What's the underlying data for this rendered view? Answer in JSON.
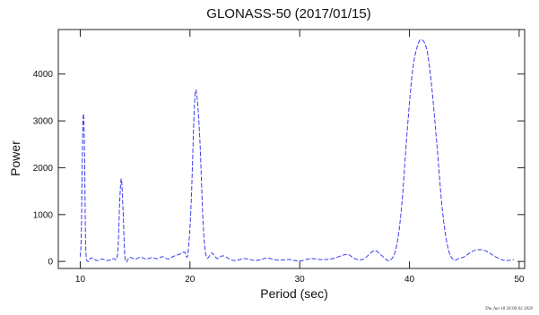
{
  "chart_data": {
    "type": "line",
    "title": "GLONASS-50 (2017/01/15)",
    "xlabel": "Period (sec)",
    "ylabel": "Power",
    "xlim": [
      8,
      50.5
    ],
    "ylim": [
      -150,
      4950
    ],
    "xticks": [
      10,
      20,
      30,
      40,
      50
    ],
    "yticks": [
      0,
      1000,
      2000,
      3000,
      4000
    ],
    "grid": false,
    "line_color": "#3a3af0",
    "line_style": "dashed",
    "series": [
      {
        "values": [
          [
            10.0,
            100
          ],
          [
            10.1,
            600
          ],
          [
            10.2,
            2400
          ],
          [
            10.3,
            3150
          ],
          [
            10.4,
            2200
          ],
          [
            10.5,
            300
          ],
          [
            10.7,
            0
          ],
          [
            11.0,
            80
          ],
          [
            11.5,
            20
          ],
          [
            12.0,
            50
          ],
          [
            12.5,
            20
          ],
          [
            13.0,
            60
          ],
          [
            13.4,
            150
          ],
          [
            13.6,
            1300
          ],
          [
            13.75,
            1760
          ],
          [
            13.9,
            1100
          ],
          [
            14.1,
            50
          ],
          [
            14.5,
            90
          ],
          [
            15.0,
            50
          ],
          [
            15.5,
            90
          ],
          [
            16.0,
            50
          ],
          [
            16.5,
            80
          ],
          [
            17.0,
            60
          ],
          [
            17.5,
            100
          ],
          [
            18.0,
            50
          ],
          [
            18.5,
            110
          ],
          [
            19.0,
            150
          ],
          [
            19.5,
            200
          ],
          [
            19.8,
            150
          ],
          [
            20.1,
            1200
          ],
          [
            20.4,
            3300
          ],
          [
            20.6,
            3600
          ],
          [
            20.9,
            2600
          ],
          [
            21.2,
            800
          ],
          [
            21.5,
            100
          ],
          [
            22.0,
            180
          ],
          [
            22.5,
            60
          ],
          [
            23.0,
            120
          ],
          [
            24.0,
            20
          ],
          [
            25.0,
            60
          ],
          [
            26.0,
            20
          ],
          [
            27.0,
            70
          ],
          [
            28.0,
            30
          ],
          [
            29.0,
            40
          ],
          [
            30.0,
            10
          ],
          [
            31.0,
            60
          ],
          [
            32.0,
            40
          ],
          [
            33.0,
            60
          ],
          [
            34.3,
            150
          ],
          [
            35.0,
            60
          ],
          [
            35.8,
            50
          ],
          [
            36.8,
            230
          ],
          [
            37.5,
            120
          ],
          [
            38.2,
            20
          ],
          [
            38.8,
            300
          ],
          [
            39.3,
            1200
          ],
          [
            39.8,
            2800
          ],
          [
            40.3,
            4100
          ],
          [
            40.8,
            4650
          ],
          [
            41.2,
            4720
          ],
          [
            41.6,
            4500
          ],
          [
            42.0,
            3800
          ],
          [
            42.5,
            2500
          ],
          [
            43.0,
            1100
          ],
          [
            43.5,
            300
          ],
          [
            44.0,
            40
          ],
          [
            44.5,
            60
          ],
          [
            45.0,
            100
          ],
          [
            45.5,
            180
          ],
          [
            46.0,
            240
          ],
          [
            46.5,
            250
          ],
          [
            47.0,
            220
          ],
          [
            47.5,
            150
          ],
          [
            48.0,
            80
          ],
          [
            48.5,
            30
          ],
          [
            49.0,
            20
          ],
          [
            49.5,
            40
          ]
        ]
      }
    ]
  },
  "footer": {
    "stamp": "Thu Jun 18 20:00:02 2020"
  }
}
